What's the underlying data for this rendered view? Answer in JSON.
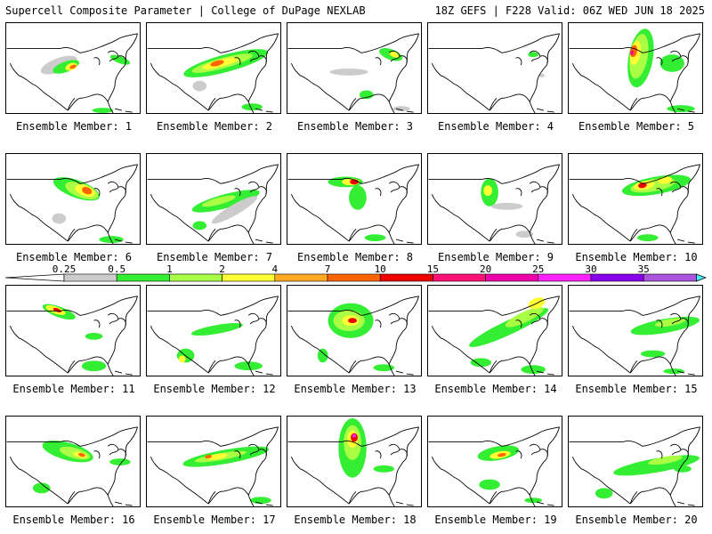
{
  "header": {
    "title": "Supercell Composite Parameter | College of DuPage NEXLAB",
    "run_info": "18Z GEFS | F228 Valid: 06Z WED JUN 18 2025"
  },
  "legend": {
    "ticks": [
      "0.25",
      "0.5",
      "1",
      "2",
      "4",
      "7",
      "10",
      "15",
      "20",
      "25",
      "30",
      "35"
    ],
    "colors": [
      "#cccccc",
      "#33ee33",
      "#aaff44",
      "#ffff33",
      "#ffaa22",
      "#ff6600",
      "#ee0000",
      "#ff1177",
      "#ee00aa",
      "#ff22ff",
      "#8800ee",
      "#aa55dd",
      "#44eeff"
    ]
  },
  "panels": [
    {
      "label": "Ensemble Member: 1"
    },
    {
      "label": "Ensemble Member: 2"
    },
    {
      "label": "Ensemble Member: 3"
    },
    {
      "label": "Ensemble Member: 4"
    },
    {
      "label": "Ensemble Member: 5"
    },
    {
      "label": "Ensemble Member: 6"
    },
    {
      "label": "Ensemble Member: 7"
    },
    {
      "label": "Ensemble Member: 8"
    },
    {
      "label": "Ensemble Member: 9"
    },
    {
      "label": "Ensemble Member: 10"
    },
    {
      "label": "Ensemble Member: 11"
    },
    {
      "label": "Ensemble Member: 12"
    },
    {
      "label": "Ensemble Member: 13"
    },
    {
      "label": "Ensemble Member: 14"
    },
    {
      "label": "Ensemble Member: 15"
    },
    {
      "label": "Ensemble Member: 16"
    },
    {
      "label": "Ensemble Member: 17"
    },
    {
      "label": "Ensemble Member: 18"
    },
    {
      "label": "Ensemble Member: 19"
    },
    {
      "label": "Ensemble Member: 20"
    }
  ]
}
